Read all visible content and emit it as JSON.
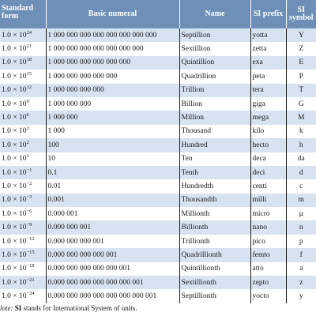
{
  "header": {
    "standard_form": "Standard form",
    "basic_numeral": "Basic numeral",
    "name": "Name",
    "si_prefix": "SI prefix",
    "si_symbol": "SI symbol"
  },
  "colors": {
    "header_bg": "#6d8fb8",
    "header_text": "#ffffff",
    "stripe": "#d7e3f1"
  },
  "rows": [
    {
      "base": "1.0 × 10",
      "exp": "24",
      "numeral": "1 000 000 000 000 000 000 000 000",
      "name": "Septillion",
      "prefix": "yotta",
      "symbol": "Y"
    },
    {
      "base": "1.0 × 10",
      "exp": "21",
      "numeral": "1 000 000 000 000 000 000 000",
      "name": "Sextillion",
      "prefix": "zetta",
      "symbol": "Z"
    },
    {
      "base": "1.0 × 10",
      "exp": "18",
      "numeral": "1 000 000 000 000 000 000",
      "name": "Quintillion",
      "prefix": "exa",
      "symbol": "E"
    },
    {
      "base": "1.0 × 10",
      "exp": "15",
      "numeral": "1 000 000 000 000 000",
      "name": "Quadrillion",
      "prefix": "peta",
      "symbol": "P"
    },
    {
      "base": "1.0 × 10",
      "exp": "12",
      "numeral": "1 000 000 000 000",
      "name": "Trillion",
      "prefix": "tera",
      "symbol": "T"
    },
    {
      "base": "1.0 × 10",
      "exp": "9",
      "numeral": "1 000 000 000",
      "name": "Billion",
      "prefix": "giga",
      "symbol": "G"
    },
    {
      "base": "1.0 × 10",
      "exp": "6",
      "numeral": "1 000 000",
      "name": "Million",
      "prefix": "mega",
      "symbol": "M"
    },
    {
      "base": "1.0 × 10",
      "exp": "3",
      "numeral": "1 000",
      "name": "Thousand",
      "prefix": "kilo",
      "symbol": "k"
    },
    {
      "base": "1.0 × 10",
      "exp": "2",
      "numeral": "100",
      "name": "Hundred",
      "prefix": "hecto",
      "symbol": "h"
    },
    {
      "base": "1.0 × 10",
      "exp": "1",
      "numeral": "10",
      "name": "Ten",
      "prefix": "deca",
      "symbol": "da"
    },
    {
      "base": "1.0 × 10",
      "exp": "−1",
      "numeral": "0.1",
      "name": "Tenth",
      "prefix": "deci",
      "symbol": "d"
    },
    {
      "base": "1.0 × 10",
      "exp": "−2",
      "numeral": "0.01",
      "name": "Hundredth",
      "prefix": "centi",
      "symbol": "c"
    },
    {
      "base": "1.0 × 10",
      "exp": "−3",
      "numeral": "0.001",
      "name": "Thousandth",
      "prefix": "milli",
      "symbol": "m"
    },
    {
      "base": "1.0 × 10",
      "exp": "−6",
      "numeral": "0.000 001",
      "name": "Millionth",
      "prefix": "micro",
      "symbol": "µ"
    },
    {
      "base": "1.0 × 10",
      "exp": "−9",
      "numeral": "0.000 000 001",
      "name": "Billionth",
      "prefix": "nano",
      "symbol": "n"
    },
    {
      "base": "1.0 × 10",
      "exp": "−12",
      "numeral": "0.000 000 000 001",
      "name": "Trillionth",
      "prefix": "pico",
      "symbol": "p"
    },
    {
      "base": "1.0 × 10",
      "exp": "−15",
      "numeral": "0.000 000 000 000 001",
      "name": "Quadrillionth",
      "prefix": "femto",
      "symbol": "f"
    },
    {
      "base": "1.0 × 10",
      "exp": "−18",
      "numeral": "0.000 000 000 000 000 001",
      "name": "Quintillionth",
      "prefix": "atto",
      "symbol": "a"
    },
    {
      "base": "1.0 × 10",
      "exp": "−21",
      "numeral": "0.000 000 000 000 000 000 001",
      "name": "Sextillionth",
      "prefix": "zepto",
      "symbol": "z"
    },
    {
      "base": "1.0 × 10",
      "exp": "−24",
      "numeral": "0.000 000 000 000 000 000 000 001",
      "name": "Septillionth",
      "prefix": "yocto",
      "symbol": "y"
    }
  ],
  "note": {
    "lead": "lote:",
    "bold": "SI",
    "text": " stands for International System of units."
  }
}
